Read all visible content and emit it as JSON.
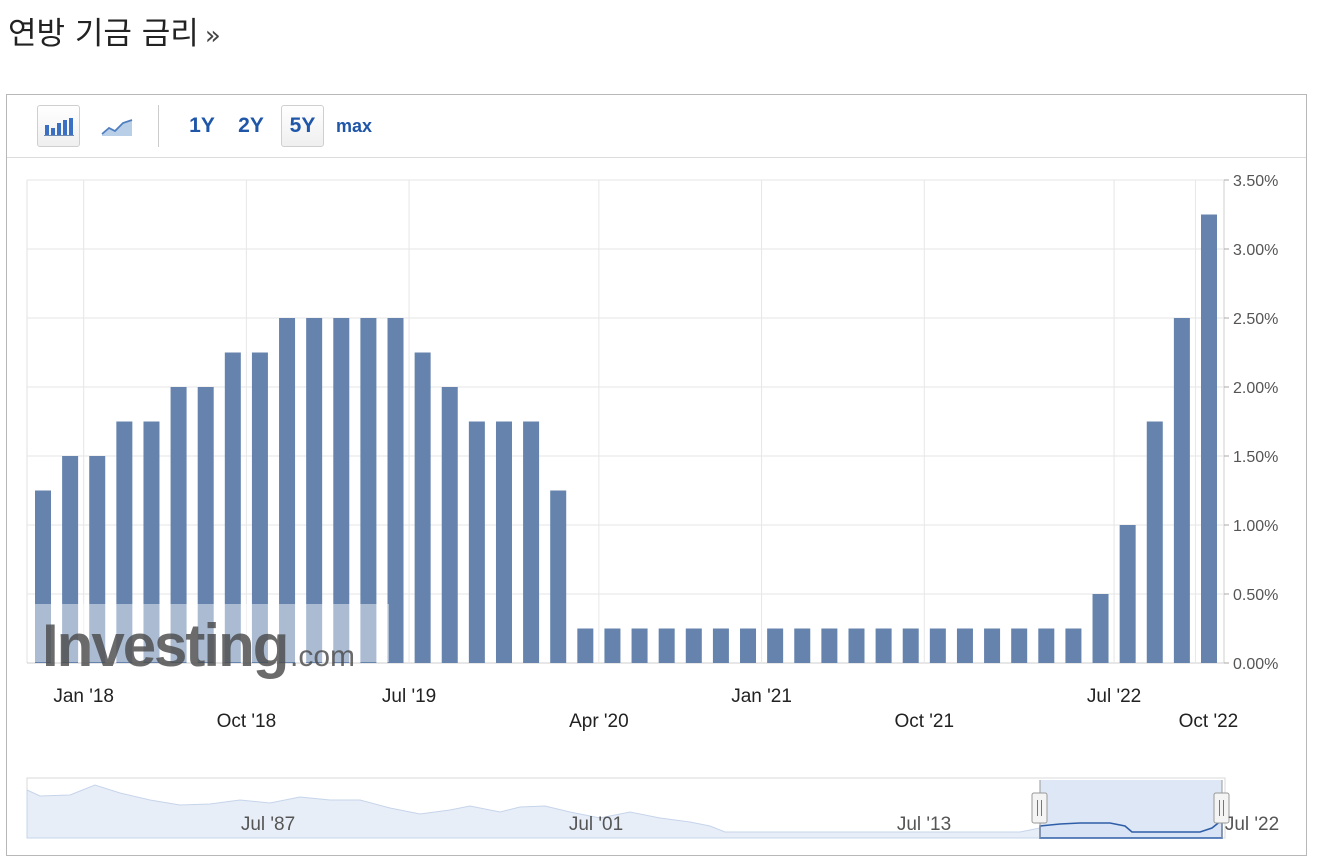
{
  "page": {
    "title": "연방 기금 금리",
    "more_glyph": "»"
  },
  "toolbar": {
    "bar_chart_icon": "bar-chart-icon",
    "line_chart_icon": "line-chart-icon",
    "ranges": [
      "1Y",
      "2Y",
      "5Y",
      "max"
    ],
    "active_range": "5Y"
  },
  "watermark": {
    "brand": "Investing",
    "suffix": ".com"
  },
  "colors": {
    "bar": "#6583ad",
    "grid": "#e6e6e6",
    "navigator_line": "#2f5ea8",
    "navigator_fill": "#d8e3f5"
  },
  "chart_data": {
    "type": "bar",
    "title": "연방 기금 금리",
    "unit": "%",
    "ylim": [
      0,
      3.5
    ],
    "y_ticks": [
      "0.00%",
      "0.50%",
      "1.00%",
      "1.50%",
      "2.00%",
      "2.50%",
      "3.00%",
      "3.50%"
    ],
    "x_ticks_row1": [
      "Jan '18",
      "Jul '19",
      "Jan '21",
      "Jul '22"
    ],
    "x_ticks_row2": [
      "Oct '18",
      "Apr '20",
      "Oct '21",
      "Oct '22"
    ],
    "values": [
      1.25,
      1.5,
      1.5,
      1.75,
      1.75,
      2.0,
      2.0,
      2.25,
      2.25,
      2.5,
      2.5,
      2.5,
      2.5,
      2.5,
      2.25,
      2.0,
      1.75,
      1.75,
      1.75,
      1.25,
      0.25,
      0.25,
      0.25,
      0.25,
      0.25,
      0.25,
      0.25,
      0.25,
      0.25,
      0.25,
      0.25,
      0.25,
      0.25,
      0.25,
      0.25,
      0.25,
      0.25,
      0.25,
      0.25,
      0.5,
      1.0,
      1.75,
      2.5,
      3.25
    ],
    "grid": true,
    "navigator": {
      "ticks": [
        "Jul '87",
        "Jul '01",
        "Jul '13",
        "Jul '22"
      ]
    }
  }
}
